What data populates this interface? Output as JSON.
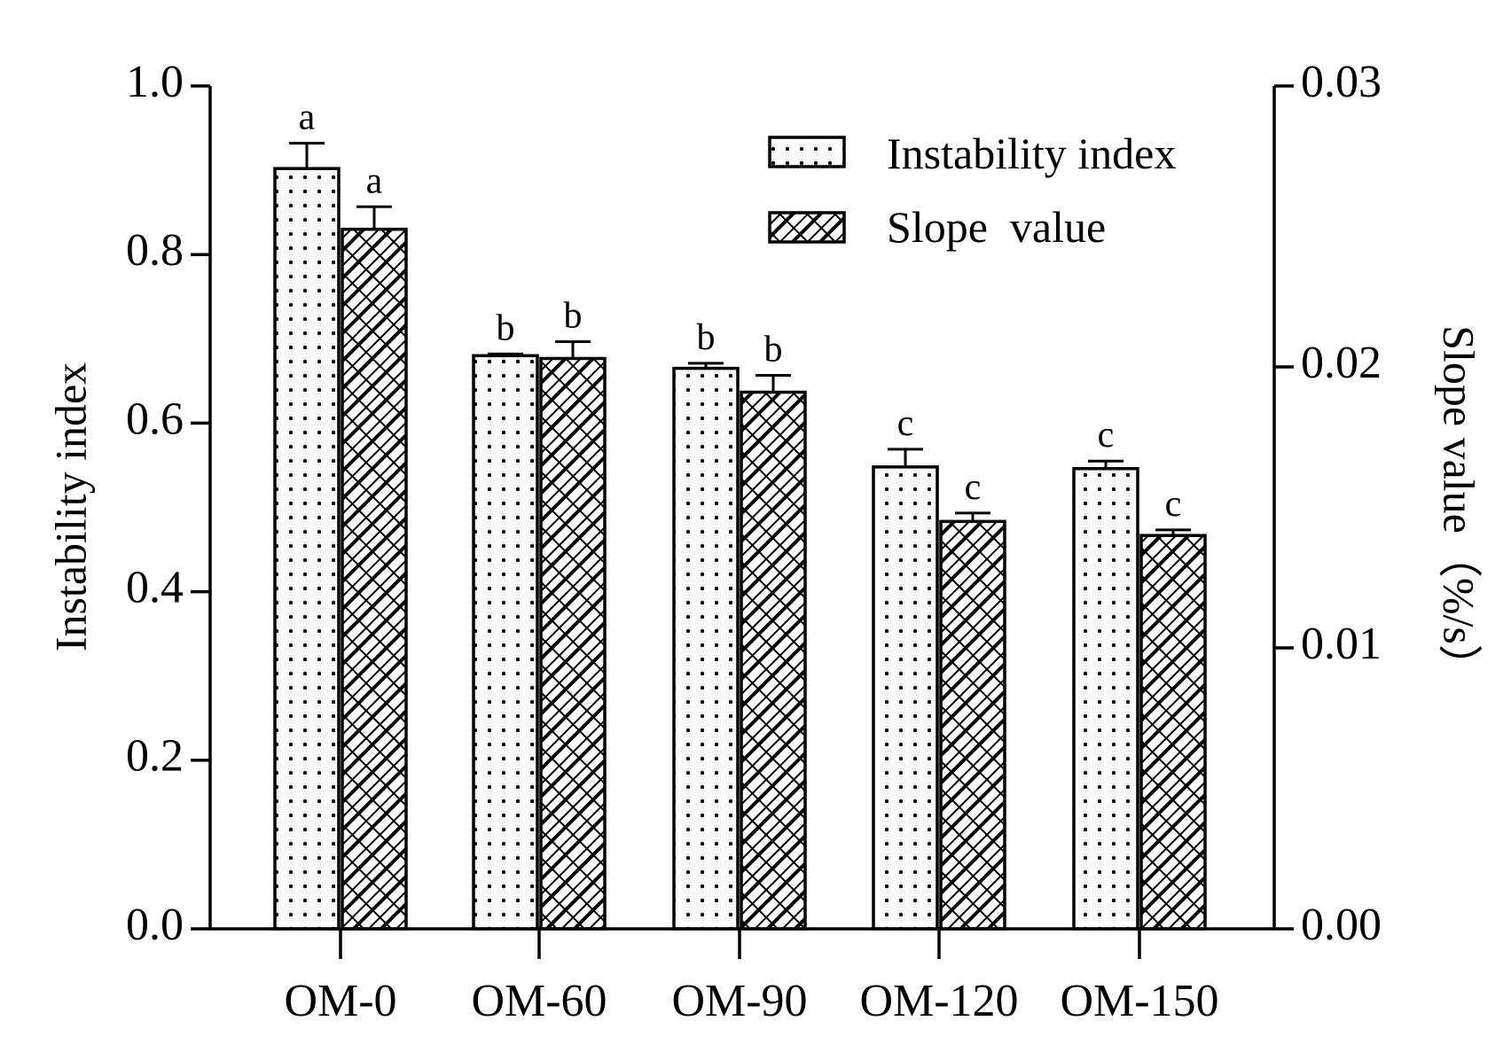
{
  "chart_data": {
    "type": "bar",
    "categories": [
      "OM-0",
      "OM-60",
      "OM-90",
      "OM-120",
      "OM-150"
    ],
    "series": [
      {
        "name": "Instability index",
        "axis": "left",
        "pattern": "dots",
        "values": [
          0.902,
          0.68,
          0.665,
          0.548,
          0.546
        ],
        "errors": [
          0.03,
          0.002,
          0.006,
          0.021,
          0.009
        ],
        "significance": [
          "a",
          "b",
          "b",
          "c",
          "c"
        ]
      },
      {
        "name": "Slope  value",
        "axis": "right",
        "pattern": "hatch",
        "values": [
          0.0249,
          0.0203,
          0.0191,
          0.0145,
          0.014
        ],
        "errors": [
          0.0008,
          0.0006,
          0.0006,
          0.0003,
          0.0002
        ],
        "significance": [
          "a",
          "b",
          "b",
          "c",
          "c"
        ]
      }
    ],
    "ylabel": "Instability index",
    "ylim": [
      0.0,
      1.0
    ],
    "yticks": [
      "0.0",
      "0.2",
      "0.4",
      "0.6",
      "0.8",
      "1.0"
    ],
    "ytick_values": [
      0.0,
      0.2,
      0.4,
      0.6,
      0.8,
      1.0
    ],
    "y2label": "Slope value（%/s）",
    "y2lim": [
      0.0,
      0.03
    ],
    "y2ticks": [
      "0.00",
      "0.01",
      "0.02",
      "0.03"
    ],
    "y2tick_values": [
      0.0,
      0.01,
      0.02,
      0.03
    ],
    "legend_position": "top-right",
    "grid": false
  }
}
